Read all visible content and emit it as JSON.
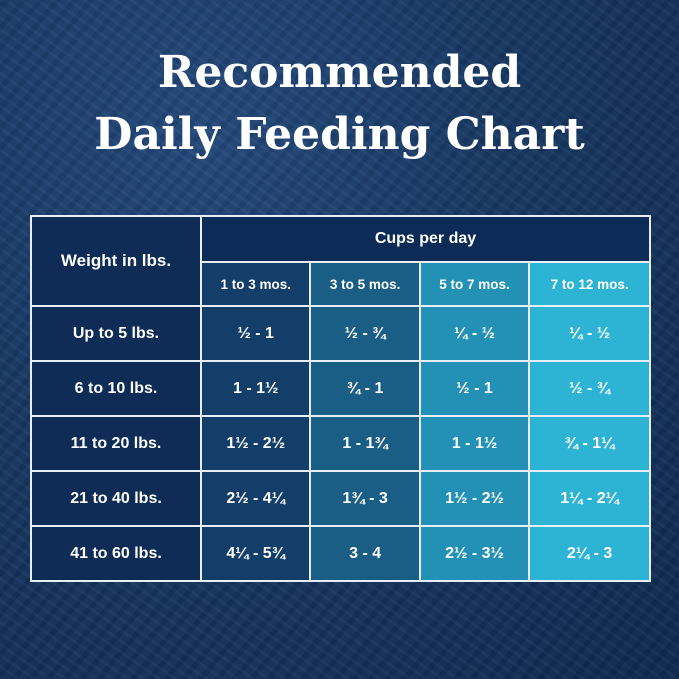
{
  "title_lines": [
    "Recommended",
    "Daily Feeding Chart"
  ],
  "colors": {
    "weight_column": "#0e2c55",
    "col_1_3": "#133e6a",
    "col_3_5": "#1b5e85",
    "col_5_7": "#2391b5",
    "col_7_12": "#2db3d3",
    "background": "#173863"
  },
  "chart_data": {
    "type": "table",
    "title": "Recommended Daily Feeding Chart",
    "row_header": "Weight in lbs.",
    "group_header": "Cups per day",
    "columns": [
      "1 to 3 mos.",
      "3 to 5 mos.",
      "5 to 7 mos.",
      "7 to 12 mos."
    ],
    "rows": [
      {
        "weight": "Up to 5 lbs.",
        "values": [
          "½  - 1",
          "½  - ¾",
          "¼  - ½",
          "¼  - ½"
        ]
      },
      {
        "weight": "6 to 10 lbs.",
        "values": [
          "1 - 1½",
          "¾ - 1",
          "½ - 1",
          "½ - ¾"
        ]
      },
      {
        "weight": "11 to 20 lbs.",
        "values": [
          "1½  - 2½",
          "1 - 1¾",
          "1 - 1½",
          "¾ - 1¼"
        ]
      },
      {
        "weight": "21 to 40 lbs.",
        "values": [
          "2½ - 4¼",
          "1¾ - 3",
          "1½ - 2½",
          "1¼ - 2¼"
        ]
      },
      {
        "weight": "41 to 60 lbs.",
        "values": [
          "4¼  - 5¾",
          "3 - 4",
          "2½  - 3½",
          "2¼  - 3"
        ]
      }
    ]
  }
}
